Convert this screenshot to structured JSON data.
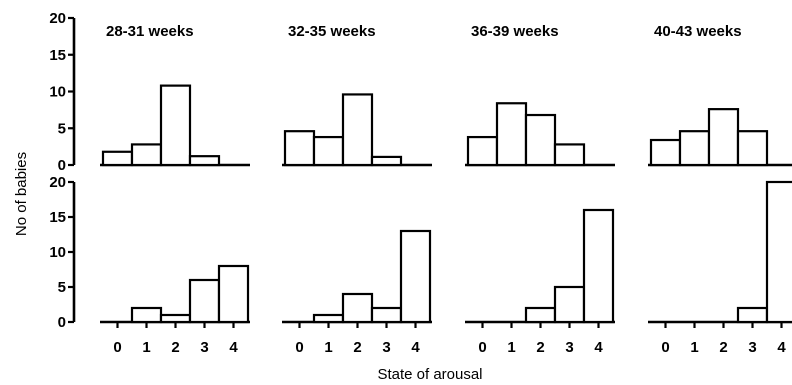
{
  "chart_data": {
    "type": "bar",
    "xlabel": "State of arousal",
    "ylabel": "No of babies",
    "categories": [
      "0",
      "1",
      "2",
      "3",
      "4"
    ],
    "ylim": [
      0,
      20
    ],
    "yticks": [
      "0",
      "5",
      "10",
      "15",
      "20"
    ],
    "columns": [
      "28-31 weeks",
      "32-35 weeks",
      "36-39 weeks",
      "40-43 weeks"
    ],
    "panels": [
      {
        "row": 1,
        "title": "28-31 weeks",
        "values": [
          1.8,
          2.8,
          10.8,
          1.2,
          0
        ]
      },
      {
        "row": 1,
        "title": "32-35 weeks",
        "values": [
          4.6,
          3.8,
          9.6,
          1.1,
          0
        ]
      },
      {
        "row": 1,
        "title": "36-39 weeks",
        "values": [
          3.8,
          8.4,
          6.8,
          2.8,
          0
        ]
      },
      {
        "row": 1,
        "title": "40-43 weeks",
        "values": [
          3.4,
          4.6,
          7.6,
          4.6,
          0
        ]
      },
      {
        "row": 2,
        "title": "28-31 weeks",
        "values": [
          0,
          2,
          1,
          6,
          8
        ]
      },
      {
        "row": 2,
        "title": "32-35 weeks",
        "values": [
          0,
          1,
          4,
          2,
          13
        ]
      },
      {
        "row": 2,
        "title": "36-39 weeks",
        "values": [
          0,
          0,
          2,
          5,
          16
        ]
      },
      {
        "row": 2,
        "title": "40-43 weeks",
        "values": [
          0,
          0,
          0,
          2,
          20
        ]
      }
    ]
  }
}
